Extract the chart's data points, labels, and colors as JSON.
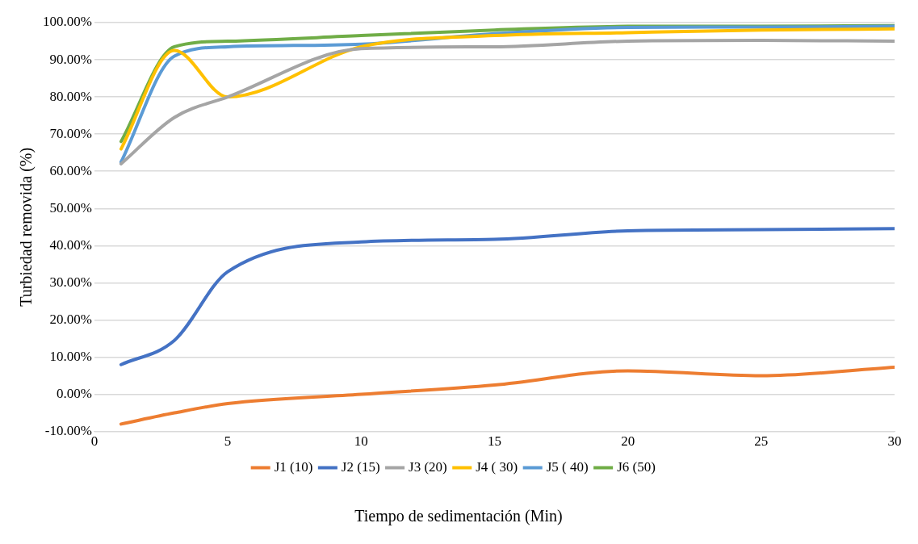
{
  "chart_data": {
    "type": "line",
    "xlabel": "Tiempo de sedimentación (Min)",
    "ylabel": "Turbiedad removida (%)",
    "x": [
      1,
      3,
      5,
      10,
      15,
      20,
      25,
      30
    ],
    "series": [
      {
        "name": "J1 (10)",
        "color": "#ed7d31",
        "values": [
          -8,
          -5,
          -2.5,
          0,
          2.5,
          6.3,
          5,
          7.3
        ]
      },
      {
        "name": "J2 (15)",
        "color": "#4472c4",
        "values": [
          8,
          14.5,
          33,
          41,
          41.7,
          44,
          44.3,
          44.6
        ]
      },
      {
        "name": "J3 (20)",
        "color": "#a5a5a5",
        "values": [
          62,
          74.5,
          80,
          93,
          93.5,
          95,
          95.2,
          95
        ]
      },
      {
        "name": "J4 ( 30)",
        "color": "#ffc000",
        "values": [
          66,
          92.5,
          80,
          93.5,
          96.5,
          97.3,
          98,
          98.3
        ]
      },
      {
        "name": "J5 ( 40)",
        "color": "#5b9bd5",
        "values": [
          62.5,
          91,
          93.5,
          94.2,
          97,
          98.7,
          98.8,
          99
        ]
      },
      {
        "name": "J6 (50)",
        "color": "#70ad47",
        "values": [
          68,
          93.5,
          95,
          96.5,
          98,
          99,
          99,
          99.2
        ]
      }
    ],
    "xlim": [
      0,
      30
    ],
    "xticks": [
      0,
      5,
      10,
      15,
      20,
      25,
      30
    ],
    "ylim": [
      -10,
      100
    ],
    "yticks": [
      {
        "value": -10,
        "label": "-10.00%"
      },
      {
        "value": 0,
        "label": "0.00%"
      },
      {
        "value": 10,
        "label": "10.00%"
      },
      {
        "value": 20,
        "label": "20.00%"
      },
      {
        "value": 30,
        "label": "30.00%"
      },
      {
        "value": 40,
        "label": "40.00%"
      },
      {
        "value": 50,
        "label": "50.00%"
      },
      {
        "value": 60,
        "label": "60.00%"
      },
      {
        "value": 70,
        "label": "70.00%"
      },
      {
        "value": 80,
        "label": "80.00%"
      },
      {
        "value": 90,
        "label": "90.00%"
      },
      {
        "value": 100,
        "label": "100.00%"
      }
    ],
    "grid": "y",
    "legend": "bottom",
    "marker": "none",
    "line_style": "solid"
  }
}
